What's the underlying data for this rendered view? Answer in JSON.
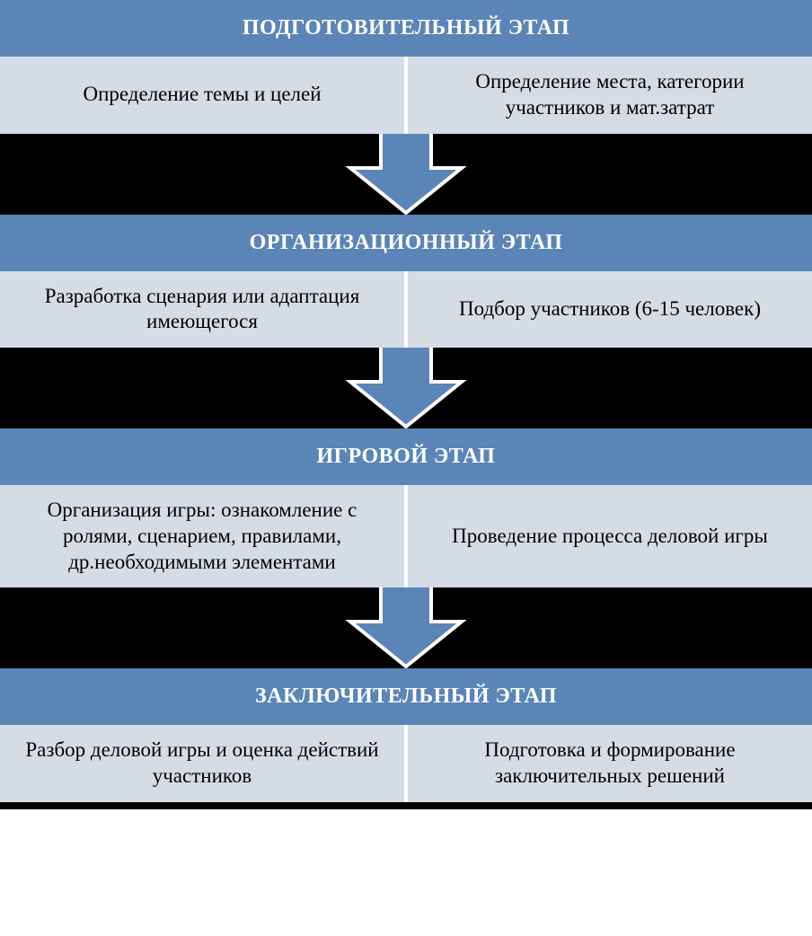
{
  "flowchart": {
    "type": "flowchart",
    "background_color": "#ffffff",
    "gap_background": "#000000",
    "header_bg": "#5b85b6",
    "header_text_color": "#ffffff",
    "cell_bg": "#d5dce6",
    "cell_text_color": "#000000",
    "arrow_fill": "#5b85b6",
    "arrow_stroke": "#ffffff",
    "arrow_stroke_width": 4,
    "header_fontsize": 24,
    "cell_fontsize": 23,
    "stages": [
      {
        "title": "ПОДГОТОВИТЕЛЬНЫЙ ЭТАП",
        "left": "Определение темы и целей",
        "right": "Определение места, категории участников и мат.затрат"
      },
      {
        "title": "ОРГАНИЗАЦИОННЫЙ ЭТАП",
        "left": "Разработка сценария или адаптация имеющегося",
        "right": "Подбор участников (6-15 человек)"
      },
      {
        "title": "ИГРОВОЙ ЭТАП",
        "left": "Организация игры: ознакомление с ролями, сценарием, правилами, др.необходимыми элементами",
        "right": "Проведение процесса деловой игры"
      },
      {
        "title": "ЗАКЛЮЧИТЕЛЬНЫЙ ЭТАП",
        "left": "Разбор деловой игры и оценка действий участников",
        "right": "Подготовка и формирование заключительных решений"
      }
    ]
  }
}
